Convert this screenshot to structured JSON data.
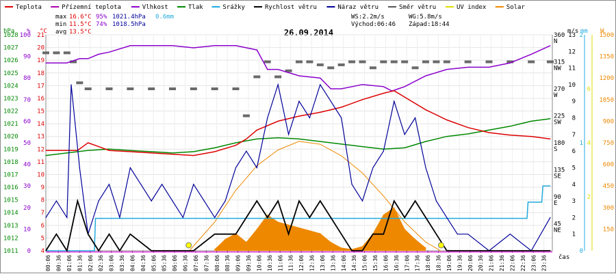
{
  "chart_data": {
    "type": "line",
    "title": "26.09.2014",
    "legend": [
      {
        "name": "Teplota",
        "color": "#dd0000"
      },
      {
        "name": "Přízemní teplota",
        "color": "#aa00aa"
      },
      {
        "name": "Vlhkost",
        "color": "#8a00cc"
      },
      {
        "name": "Tlak",
        "color": "#008800"
      },
      {
        "name": "Srážky",
        "color": "#22aadd"
      },
      {
        "name": "Rychlost větru",
        "color": "#000000"
      },
      {
        "name": "Náraz větru",
        "color": "#000099"
      },
      {
        "name": "Směr větru",
        "color": "#555555"
      },
      {
        "name": "UV index",
        "color": "#dddd00"
      },
      {
        "name": "Solar",
        "color": "#ee8800"
      }
    ],
    "stats": {
      "max": {
        "label": "max",
        "temp": "16.6°C",
        "hum": "95%",
        "press": "1021.4hPa",
        "rain": "0.6mm"
      },
      "min": {
        "label": "min",
        "temp": "11.5°C",
        "hum": "74%",
        "press": "1018.5hPa"
      },
      "avg": {
        "label": "avg",
        "temp": "13.5°C"
      }
    },
    "wind_info": {
      "ws": "WS:2.2m/s",
      "wg": "WG:5.8m/s",
      "sunrise": "Východ:06:46",
      "sunset": "Západ:18:44"
    },
    "axes": {
      "pressure": {
        "unit": "hPa",
        "range": [
          1011,
          1028
        ],
        "ticks": [
          "1011",
          "1012",
          "1013",
          "1014",
          "1015",
          "1016",
          "1017",
          "1018",
          "1019",
          "1020",
          "1021",
          "1022",
          "1023",
          "1024",
          "1025",
          "1026",
          "1027",
          "1028"
        ]
      },
      "humidity": {
        "unit": "%",
        "range": [
          0,
          100
        ],
        "ticks": [
          "0",
          "10",
          "20",
          "30",
          "40",
          "50",
          "60",
          "70",
          "80",
          "90",
          "100"
        ]
      },
      "temperature": {
        "unit": "°C",
        "range": [
          4,
          21
        ],
        "ticks": [
          "4",
          "5",
          "6",
          "7",
          "8",
          "9",
          "10",
          "11",
          "12",
          "13",
          "14",
          "15",
          "16",
          "17",
          "18",
          "19",
          "20",
          "21"
        ]
      },
      "direction": {
        "ticks": [
          {
            "deg": "360",
            "dir": "N"
          },
          {
            "deg": "315",
            "dir": "NW"
          },
          {
            "deg": "270",
            "dir": "W"
          },
          {
            "deg": "225",
            "dir": "SW"
          },
          {
            "deg": "180",
            "dir": "S"
          },
          {
            "deg": "135",
            "dir": "SE"
          },
          {
            "deg": "90",
            "dir": "E"
          },
          {
            "deg": "45",
            "dir": "NE"
          }
        ]
      },
      "wind": {
        "unit": "m/s",
        "range": [
          0,
          13
        ],
        "ticks": [
          "1",
          "2",
          "3",
          "4",
          "5",
          "6",
          "7",
          "8",
          "9",
          "10",
          "11",
          "12",
          "13"
        ]
      },
      "rain": {
        "unit": "mm",
        "range": [
          0,
          2
        ],
        "ticks": [
          "0",
          "1",
          "2"
        ]
      },
      "uv": {
        "unit": "W",
        "ticks": [
          "2",
          "4",
          "6"
        ]
      },
      "solar": {
        "range": [
          0,
          1500
        ],
        "ticks": [
          "150",
          "300",
          "450",
          "600",
          "750",
          "900",
          "1050",
          "1200",
          "1350",
          "1500"
        ]
      },
      "x_label": "čas",
      "x_ticks": [
        "00:06",
        "00:36",
        "01:06",
        "01:36",
        "02:06",
        "02:36",
        "03:06",
        "03:36",
        "04:06",
        "04:36",
        "05:06",
        "05:36",
        "06:06",
        "06:36",
        "07:06",
        "07:36",
        "08:06",
        "08:36",
        "09:06",
        "09:36",
        "10:06",
        "10:36",
        "11:06",
        "11:36",
        "12:06",
        "12:36",
        "13:06",
        "13:36",
        "14:06",
        "14:36",
        "15:06",
        "15:36",
        "16:06",
        "16:36",
        "17:06",
        "17:36",
        "18:06",
        "18:36",
        "19:06",
        "19:36",
        "20:06",
        "20:36",
        "21:06",
        "21:36",
        "22:06",
        "22:36",
        "23:06",
        "23:36"
      ]
    },
    "series": {
      "temperature": {
        "t": [
          0,
          1,
          1.5,
          2,
          2.5,
          3,
          4,
          5,
          6,
          7,
          8,
          9,
          9.5,
          10,
          11,
          12,
          13,
          14,
          15,
          16,
          16.5,
          17,
          18,
          19,
          20,
          21,
          22,
          23,
          23.9
        ],
        "v": [
          11.9,
          11.9,
          11.9,
          12.5,
          12.2,
          11.9,
          11.8,
          11.7,
          11.6,
          11.5,
          11.8,
          12.3,
          12.8,
          13.5,
          14.2,
          14.6,
          14.9,
          15.3,
          15.9,
          16.4,
          16.6,
          16.1,
          15.1,
          14.3,
          13.7,
          13.3,
          13.1,
          13.0,
          12.8
        ]
      },
      "humidity": {
        "t": [
          0,
          1,
          1.6,
          2,
          2.5,
          3,
          4,
          5,
          6,
          7,
          8,
          9,
          10,
          10.5,
          11,
          12,
          13,
          13.5,
          14,
          15,
          16,
          16.4,
          16.7,
          17,
          18,
          19,
          20,
          21,
          22,
          23,
          23.9
        ],
        "v": [
          87,
          87,
          89,
          89,
          91,
          92,
          95,
          95,
          95,
          94,
          95,
          95,
          93,
          84,
          84,
          81,
          80,
          75,
          75,
          77,
          76,
          74,
          75,
          76,
          81,
          84,
          85,
          85,
          87,
          91,
          95
        ]
      },
      "pressure": {
        "t": [
          0,
          1,
          2,
          3,
          4,
          5,
          6,
          7,
          8,
          9,
          10,
          11,
          12,
          13,
          14,
          15,
          16,
          17,
          18,
          19,
          20,
          21,
          22,
          23,
          23.9
        ],
        "v": [
          1018.5,
          1018.7,
          1018.9,
          1019.0,
          1018.9,
          1018.8,
          1018.7,
          1018.8,
          1019.1,
          1019.5,
          1019.8,
          1019.9,
          1019.8,
          1019.6,
          1019.4,
          1019.2,
          1019.0,
          1019.1,
          1019.6,
          1020.0,
          1020.2,
          1020.5,
          1020.8,
          1021.2,
          1021.4
        ]
      },
      "rain_cumulative": {
        "t": [
          0,
          2.3,
          2.35,
          22.8,
          22.85,
          23.5,
          23.55,
          23.9
        ],
        "v": [
          0,
          0,
          0.3,
          0.3,
          0.45,
          0.45,
          0.6,
          0.6
        ]
      },
      "wind_speed": {
        "t": [
          0,
          0.5,
          1,
          1.5,
          2,
          2.5,
          3,
          3.5,
          4,
          5,
          6,
          7,
          8,
          9,
          9.5,
          10,
          10.5,
          11,
          11.5,
          12,
          12.5,
          13,
          13.5,
          14,
          14.5,
          15,
          15.5,
          16,
          16.5,
          17,
          17.5,
          18,
          18.5,
          19,
          20,
          21,
          22,
          23,
          23.9
        ],
        "v": [
          0,
          1,
          0,
          3,
          1,
          0,
          1,
          0,
          1,
          0,
          0,
          0,
          1,
          1,
          2,
          3,
          2,
          3,
          1,
          3,
          2,
          3,
          2,
          1,
          0,
          0,
          1,
          1,
          3,
          2,
          3,
          2,
          1,
          0,
          0,
          0,
          0,
          0,
          0
        ]
      },
      "wind_gust": {
        "t": [
          0,
          0.5,
          1,
          1.2,
          1.6,
          2,
          2.5,
          3,
          3.5,
          4,
          4.5,
          5,
          5.5,
          6,
          6.5,
          7,
          7.5,
          8,
          8.5,
          9,
          9.5,
          10,
          10.5,
          11,
          11.5,
          12,
          12.5,
          13,
          13.5,
          14,
          14.5,
          15,
          15.5,
          16,
          16.5,
          17,
          17.5,
          18,
          18.5,
          19,
          19.5,
          20,
          21,
          22,
          23,
          23.9
        ],
        "v": [
          2,
          3,
          2,
          10,
          5,
          1,
          3,
          4,
          2,
          5,
          4,
          3,
          4,
          3,
          2,
          4,
          3,
          2,
          3,
          5,
          6,
          5,
          8,
          10,
          7,
          9,
          8,
          10,
          9,
          8,
          4,
          3,
          5,
          6,
          9,
          7,
          8,
          5,
          3,
          2,
          1,
          1,
          0,
          1,
          0,
          2
        ]
      },
      "wind_dir": {
        "t": [
          0,
          0.5,
          1,
          1.3,
          1.6,
          2,
          3,
          4,
          5,
          6,
          7,
          8,
          9,
          9.5,
          10,
          10.5,
          11,
          11.5,
          12,
          12.5,
          13,
          13.5,
          14,
          14.5,
          15,
          15.5,
          16,
          16.5,
          17,
          17.5,
          18,
          18.5,
          19,
          20,
          21,
          22,
          23,
          23.9
        ],
        "v": [
          330,
          330,
          330,
          315,
          280,
          270,
          270,
          270,
          270,
          270,
          270,
          270,
          270,
          225,
          290,
          315,
          290,
          300,
          315,
          315,
          310,
          305,
          310,
          315,
          315,
          305,
          315,
          315,
          315,
          305,
          315,
          315,
          315,
          315,
          315,
          315,
          315,
          315
        ]
      },
      "solar": {
        "t": [
          8,
          8.5,
          9,
          9.5,
          10,
          10.5,
          11,
          11.5,
          12,
          12.5,
          13,
          13.5,
          14,
          14.5,
          15,
          15.5,
          16,
          16.5,
          17,
          17.5,
          18
        ],
        "v": [
          10,
          80,
          120,
          60,
          150,
          250,
          200,
          180,
          160,
          140,
          120,
          60,
          20,
          10,
          30,
          120,
          250,
          300,
          150,
          80,
          20
        ]
      },
      "solar_theory": {
        "t": [
          6.8,
          8,
          9,
          10,
          11,
          12,
          13,
          14,
          15,
          16,
          17,
          18,
          18.7
        ],
        "v": [
          0,
          200,
          420,
          590,
          700,
          760,
          740,
          660,
          540,
          380,
          200,
          60,
          0
        ]
      }
    }
  }
}
